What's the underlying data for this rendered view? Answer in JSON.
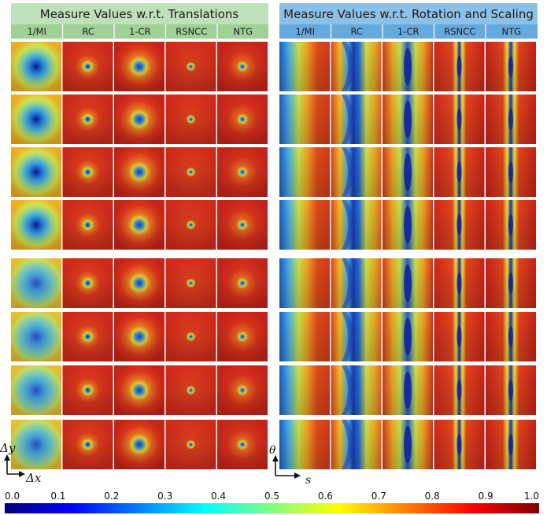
{
  "left_panel": {
    "title": "Measure Values w.r.t. Translations",
    "columns": [
      "1/MI",
      "RC",
      "1-CR",
      "RSNCC",
      "NTG"
    ],
    "x_axis": "Δx",
    "y_axis": "Δy",
    "header_color": "#bfe0b8",
    "rows": 8
  },
  "right_panel": {
    "title": "Measure Values w.r.t. Rotation and Scaling",
    "columns": [
      "1/MI",
      "RC",
      "1-CR",
      "RSNCC",
      "NTG"
    ],
    "x_axis": "s",
    "y_axis": "θ",
    "header_color": "#8cc0e6",
    "rows": 8
  },
  "colorbar": {
    "ticks": [
      "0.0",
      "0.1",
      "0.2",
      "0.3",
      "0.4",
      "0.5",
      "0.6",
      "0.7",
      "0.8",
      "0.9",
      "1.0"
    ],
    "colormap": "jet",
    "range": [
      0,
      1
    ]
  },
  "colors": {
    "sub_header_left": "#9fd096",
    "sub_header_right": "#66a9dd",
    "divider": "#ffffff"
  }
}
